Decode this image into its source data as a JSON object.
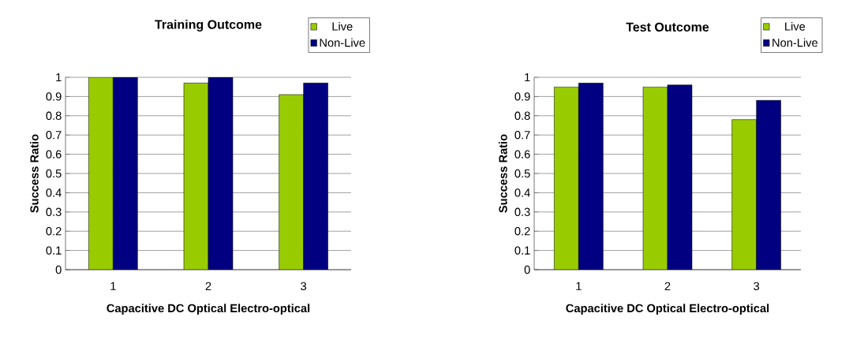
{
  "chart_data": [
    {
      "type": "bar",
      "title": "Training Outcome",
      "xlabel": "Capacitive DC  Optical  Electro-optical",
      "ylabel": "Success Ratio",
      "categories": [
        "1",
        "2",
        "3"
      ],
      "series": [
        {
          "name": "Live",
          "color": "#99cc00",
          "values": [
            1,
            0.97,
            0.91
          ]
        },
        {
          "name": "Non-Live",
          "color": "#000080",
          "values": [
            1,
            1,
            0.97
          ]
        }
      ],
      "ylim": [
        0,
        1
      ],
      "yticks": [
        0,
        0.1,
        0.2,
        0.3,
        0.4,
        0.5,
        0.6,
        0.7,
        0.8,
        0.9,
        1
      ],
      "grid": "y",
      "legend": "top right"
    },
    {
      "type": "bar",
      "title": "Test Outcome",
      "xlabel": "Capacitive DC  Optical  Electro-optical",
      "ylabel": "Success Ratio",
      "categories": [
        "1",
        "2",
        "3"
      ],
      "series": [
        {
          "name": "Live",
          "color": "#99cc00",
          "values": [
            0.95,
            0.95,
            0.78
          ]
        },
        {
          "name": "Non-Live",
          "color": "#000080",
          "values": [
            0.97,
            0.96,
            0.88
          ]
        }
      ],
      "ylim": [
        0,
        1
      ],
      "yticks": [
        0,
        0.1,
        0.2,
        0.3,
        0.4,
        0.5,
        0.6,
        0.7,
        0.8,
        0.9,
        1
      ],
      "grid": "y",
      "legend": "top right"
    }
  ]
}
